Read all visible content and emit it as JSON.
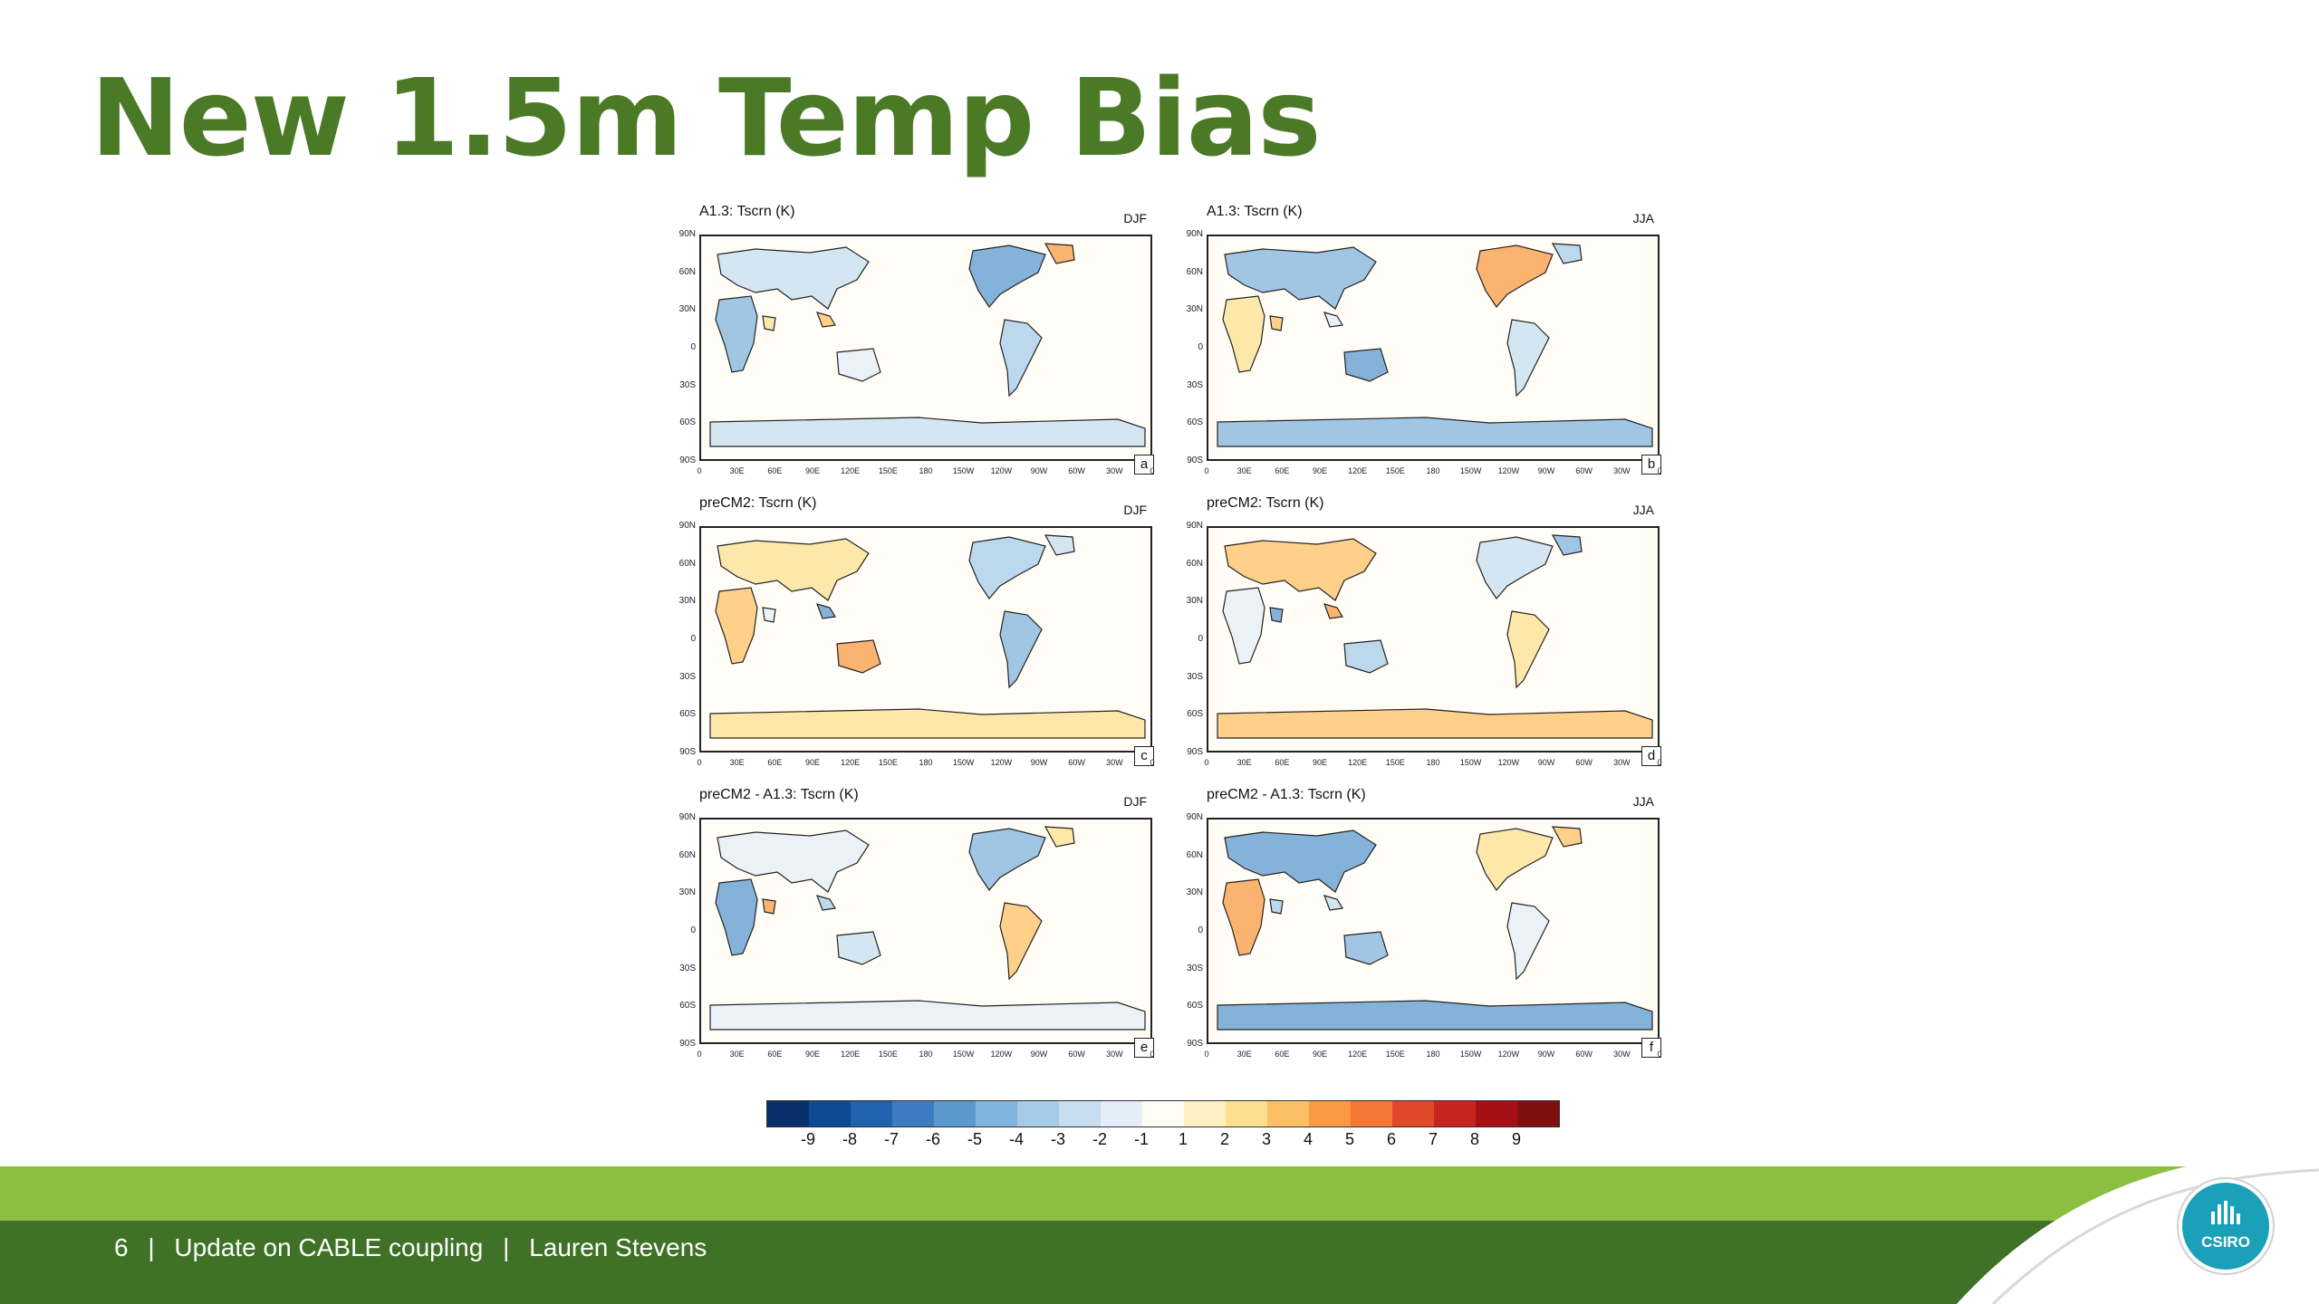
{
  "slide": {
    "title": "New 1.5m Temp Bias"
  },
  "panels": [
    {
      "title": "A1.3: Tscrn (K)",
      "season": "DJF",
      "letter": "a"
    },
    {
      "title": "A1.3: Tscrn (K)",
      "season": "JJA",
      "letter": "b"
    },
    {
      "title": "preCM2: Tscrn (K)",
      "season": "DJF",
      "letter": "c"
    },
    {
      "title": "preCM2: Tscrn (K)",
      "season": "JJA",
      "letter": "d"
    },
    {
      "title": "preCM2 - A1.3: Tscrn (K)",
      "season": "DJF",
      "letter": "e"
    },
    {
      "title": "preCM2 - A1.3: Tscrn (K)",
      "season": "JJA",
      "letter": "f"
    }
  ],
  "lat_ticks": [
    "90N",
    "60N",
    "30N",
    "0",
    "30S",
    "60S",
    "90S"
  ],
  "lon_ticks": [
    "0",
    "30E",
    "60E",
    "90E",
    "120E",
    "150E",
    "180",
    "150W",
    "120W",
    "90W",
    "60W",
    "30W",
    "0"
  ],
  "colorbar": {
    "labels": [
      "-9",
      "-8",
      "-7",
      "-6",
      "-5",
      "-4",
      "-3",
      "-2",
      "-1",
      "1",
      "2",
      "3",
      "4",
      "5",
      "6",
      "7",
      "8",
      "9"
    ],
    "colors": [
      "#08306b",
      "#0d4a94",
      "#1f62ad",
      "#3b7dc0",
      "#5b98cf",
      "#80b3de",
      "#a6cbe8",
      "#c6ddf0",
      "#e3eef8",
      "#fdfdf3",
      "#fdf1c4",
      "#fde08f",
      "#fdc066",
      "#fa9a43",
      "#f47735",
      "#e0482a",
      "#c5241f",
      "#a50f15",
      "#800f0f"
    ]
  },
  "footer": {
    "page_number": "6",
    "separator1": "|",
    "presentation_title": "Update on CABLE coupling",
    "separator2": "|",
    "author": "Lauren Stevens"
  },
  "logo": {
    "text": "CSIRO"
  },
  "colors": {
    "title_green": "#4a7a26",
    "footer_light": "#8cbf3f",
    "footer_dark": "#3f7227",
    "logo_teal": "#1aa0b8"
  }
}
